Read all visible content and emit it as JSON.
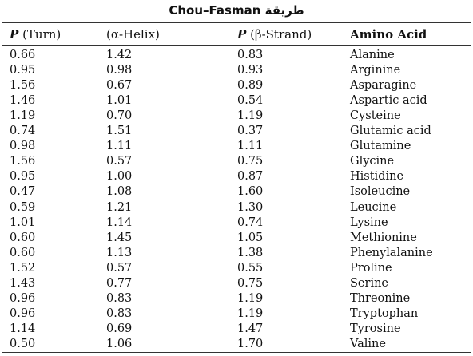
{
  "table": {
    "title": "Chou–Fasman طريقة",
    "headers": [
      {
        "symbol": "P",
        "text": "(Turn)"
      },
      {
        "text": "(α-Helix)"
      },
      {
        "symbol": "P",
        "text": "(β-Strand)"
      },
      {
        "text": "Amino Acid"
      }
    ],
    "rows": [
      [
        "0.66",
        "1.42",
        "0.83",
        "Alanine"
      ],
      [
        "0.95",
        "0.98",
        "0.93",
        "Arginine"
      ],
      [
        "1.56",
        "0.67",
        "0.89",
        "Asparagine"
      ],
      [
        "1.46",
        "1.01",
        "0.54",
        "Aspartic acid"
      ],
      [
        "1.19",
        "0.70",
        "1.19",
        "Cysteine"
      ],
      [
        "0.74",
        "1.51",
        "0.37",
        "Glutamic acid"
      ],
      [
        "0.98",
        "1.11",
        "1.11",
        "Glutamine"
      ],
      [
        "1.56",
        "0.57",
        "0.75",
        "Glycine"
      ],
      [
        "0.95",
        "1.00",
        "0.87",
        "Histidine"
      ],
      [
        "0.47",
        "1.08",
        "1.60",
        "Isoleucine"
      ],
      [
        "0.59",
        "1.21",
        "1.30",
        "Leucine"
      ],
      [
        "1.01",
        "1.14",
        "0.74",
        "Lysine"
      ],
      [
        "0.60",
        "1.45",
        "1.05",
        "Methionine"
      ],
      [
        "0.60",
        "1.13",
        "1.38",
        "Phenylalanine"
      ],
      [
        "1.52",
        "0.57",
        "0.55",
        "Proline"
      ],
      [
        "1.43",
        "0.77",
        "0.75",
        "Serine"
      ],
      [
        "0.96",
        "0.83",
        "1.19",
        "Threonine"
      ],
      [
        "0.96",
        "0.83",
        "1.19",
        "Tryptophan"
      ],
      [
        "1.14",
        "0.69",
        "1.47",
        "Tyrosine"
      ],
      [
        "0.50",
        "1.06",
        "1.70",
        "Valine"
      ]
    ]
  }
}
